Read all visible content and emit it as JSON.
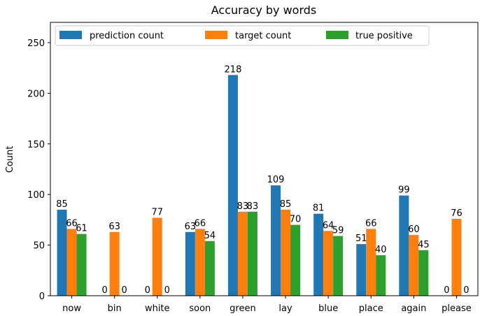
{
  "chart_data": {
    "type": "bar",
    "title": "Accuracy by words",
    "xlabel": "",
    "ylabel": "Count",
    "ylim": [
      0,
      270
    ],
    "yticks": [
      0,
      50,
      100,
      150,
      200,
      250
    ],
    "categories": [
      "now",
      "bin",
      "white",
      "soon",
      "green",
      "lay",
      "blue",
      "place",
      "again",
      "please"
    ],
    "series": [
      {
        "name": "prediction count",
        "color": "#1f77b4",
        "values": [
          85,
          0,
          0,
          63,
          218,
          109,
          81,
          51,
          99,
          0
        ]
      },
      {
        "name": "target count",
        "color": "#ff7f0e",
        "values": [
          66,
          63,
          77,
          66,
          83,
          85,
          64,
          66,
          60,
          76
        ]
      },
      {
        "name": "true positive",
        "color": "#2ca02c",
        "values": [
          61,
          0,
          0,
          54,
          83,
          70,
          59,
          40,
          45,
          0
        ]
      }
    ],
    "legend_position": "top",
    "grid": false
  }
}
